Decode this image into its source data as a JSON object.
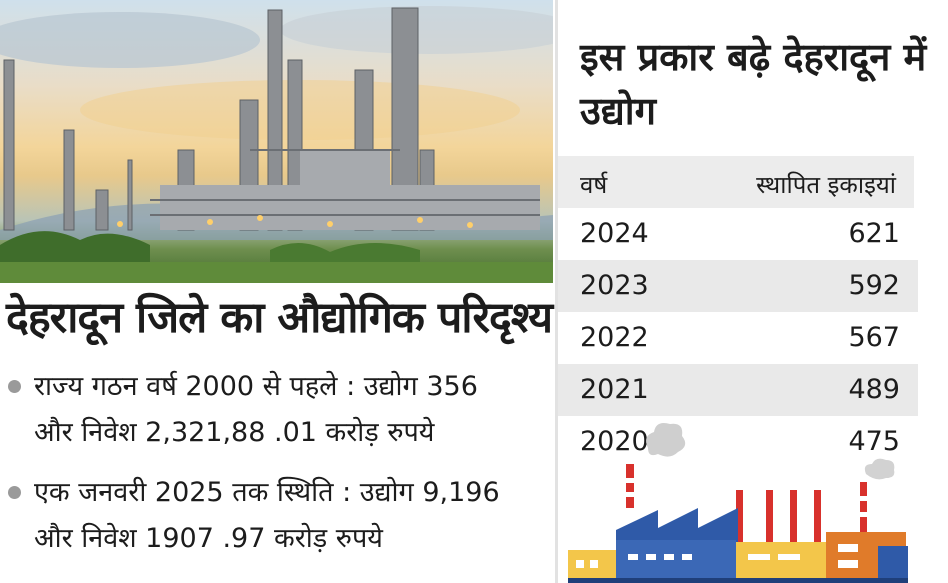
{
  "article": {
    "headline": "देहरादून जिले का औद्योगिक परिदृश्य",
    "facts": [
      {
        "line1": "राज्य गठन वर्ष 2000 से पहले : उद्योग 356",
        "line2": "और निवेश 2,321,88 .01 करोड़ रुपये"
      },
      {
        "line1": "एक जनवरी 2025 तक स्थिति : उद्योग 9,196",
        "line2": "और निवेश 1907 .97 करोड़ रुपये"
      }
    ]
  },
  "panel": {
    "title": "इस प्रकार बढ़े देहरादून में उद्योग",
    "col_year": "वर्ष",
    "col_units": "स्थापित इकाइयां",
    "rows": [
      {
        "year": "2024",
        "units": "621"
      },
      {
        "year": "2023",
        "units": "592"
      },
      {
        "year": "2022",
        "units": "567"
      },
      {
        "year": "2021",
        "units": "489"
      },
      {
        "year": "2020",
        "units": "475"
      }
    ]
  },
  "colors": {
    "row_shade": "#e9e9e9",
    "bullet": "#9a9a9a",
    "factory_blue": "#2f5aa8",
    "factory_yellow": "#f3c64a",
    "chimney_red": "#d8312c"
  },
  "icons": [
    "refinery-photo",
    "factory-illustration-icon",
    "smoke-icon"
  ]
}
